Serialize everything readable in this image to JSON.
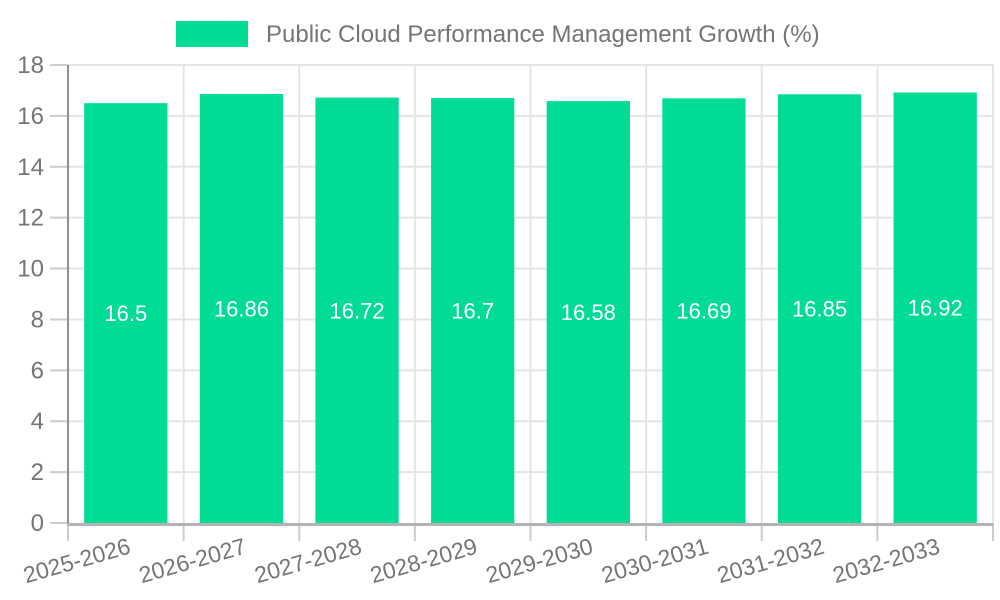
{
  "legend": {
    "label": "Public Cloud Performance Management Growth (%)",
    "swatch_color": "#00DC96"
  },
  "chart_data": {
    "type": "bar",
    "title": "Public Cloud Performance Management Growth (%)",
    "categories": [
      "2025-2026",
      "2026-2027",
      "2027-2028",
      "2028-2029",
      "2029-2030",
      "2030-2031",
      "2031-2032",
      "2032-2033"
    ],
    "values": [
      16.5,
      16.86,
      16.72,
      16.7,
      16.58,
      16.69,
      16.85,
      16.92
    ],
    "value_labels": [
      "16.5",
      "16.86",
      "16.72",
      "16.7",
      "16.58",
      "16.69",
      "16.85",
      "16.92"
    ],
    "xlabel": "",
    "ylabel": "",
    "ylim": [
      0,
      18
    ],
    "yticks": [
      0,
      2,
      4,
      6,
      8,
      10,
      12,
      14,
      16,
      18
    ],
    "grid": true,
    "legend_position": "top"
  },
  "colors": {
    "bar": "#00DC96",
    "value_label_text": "#ffffff",
    "axis_text": "#757575",
    "legend_text": "#757575",
    "gridline": "#e5e5e5",
    "y_axis_line": "#909090",
    "x_axis_line": "#b3b3b3",
    "tick_mark": "#cccccc",
    "background": "#ffffff"
  }
}
